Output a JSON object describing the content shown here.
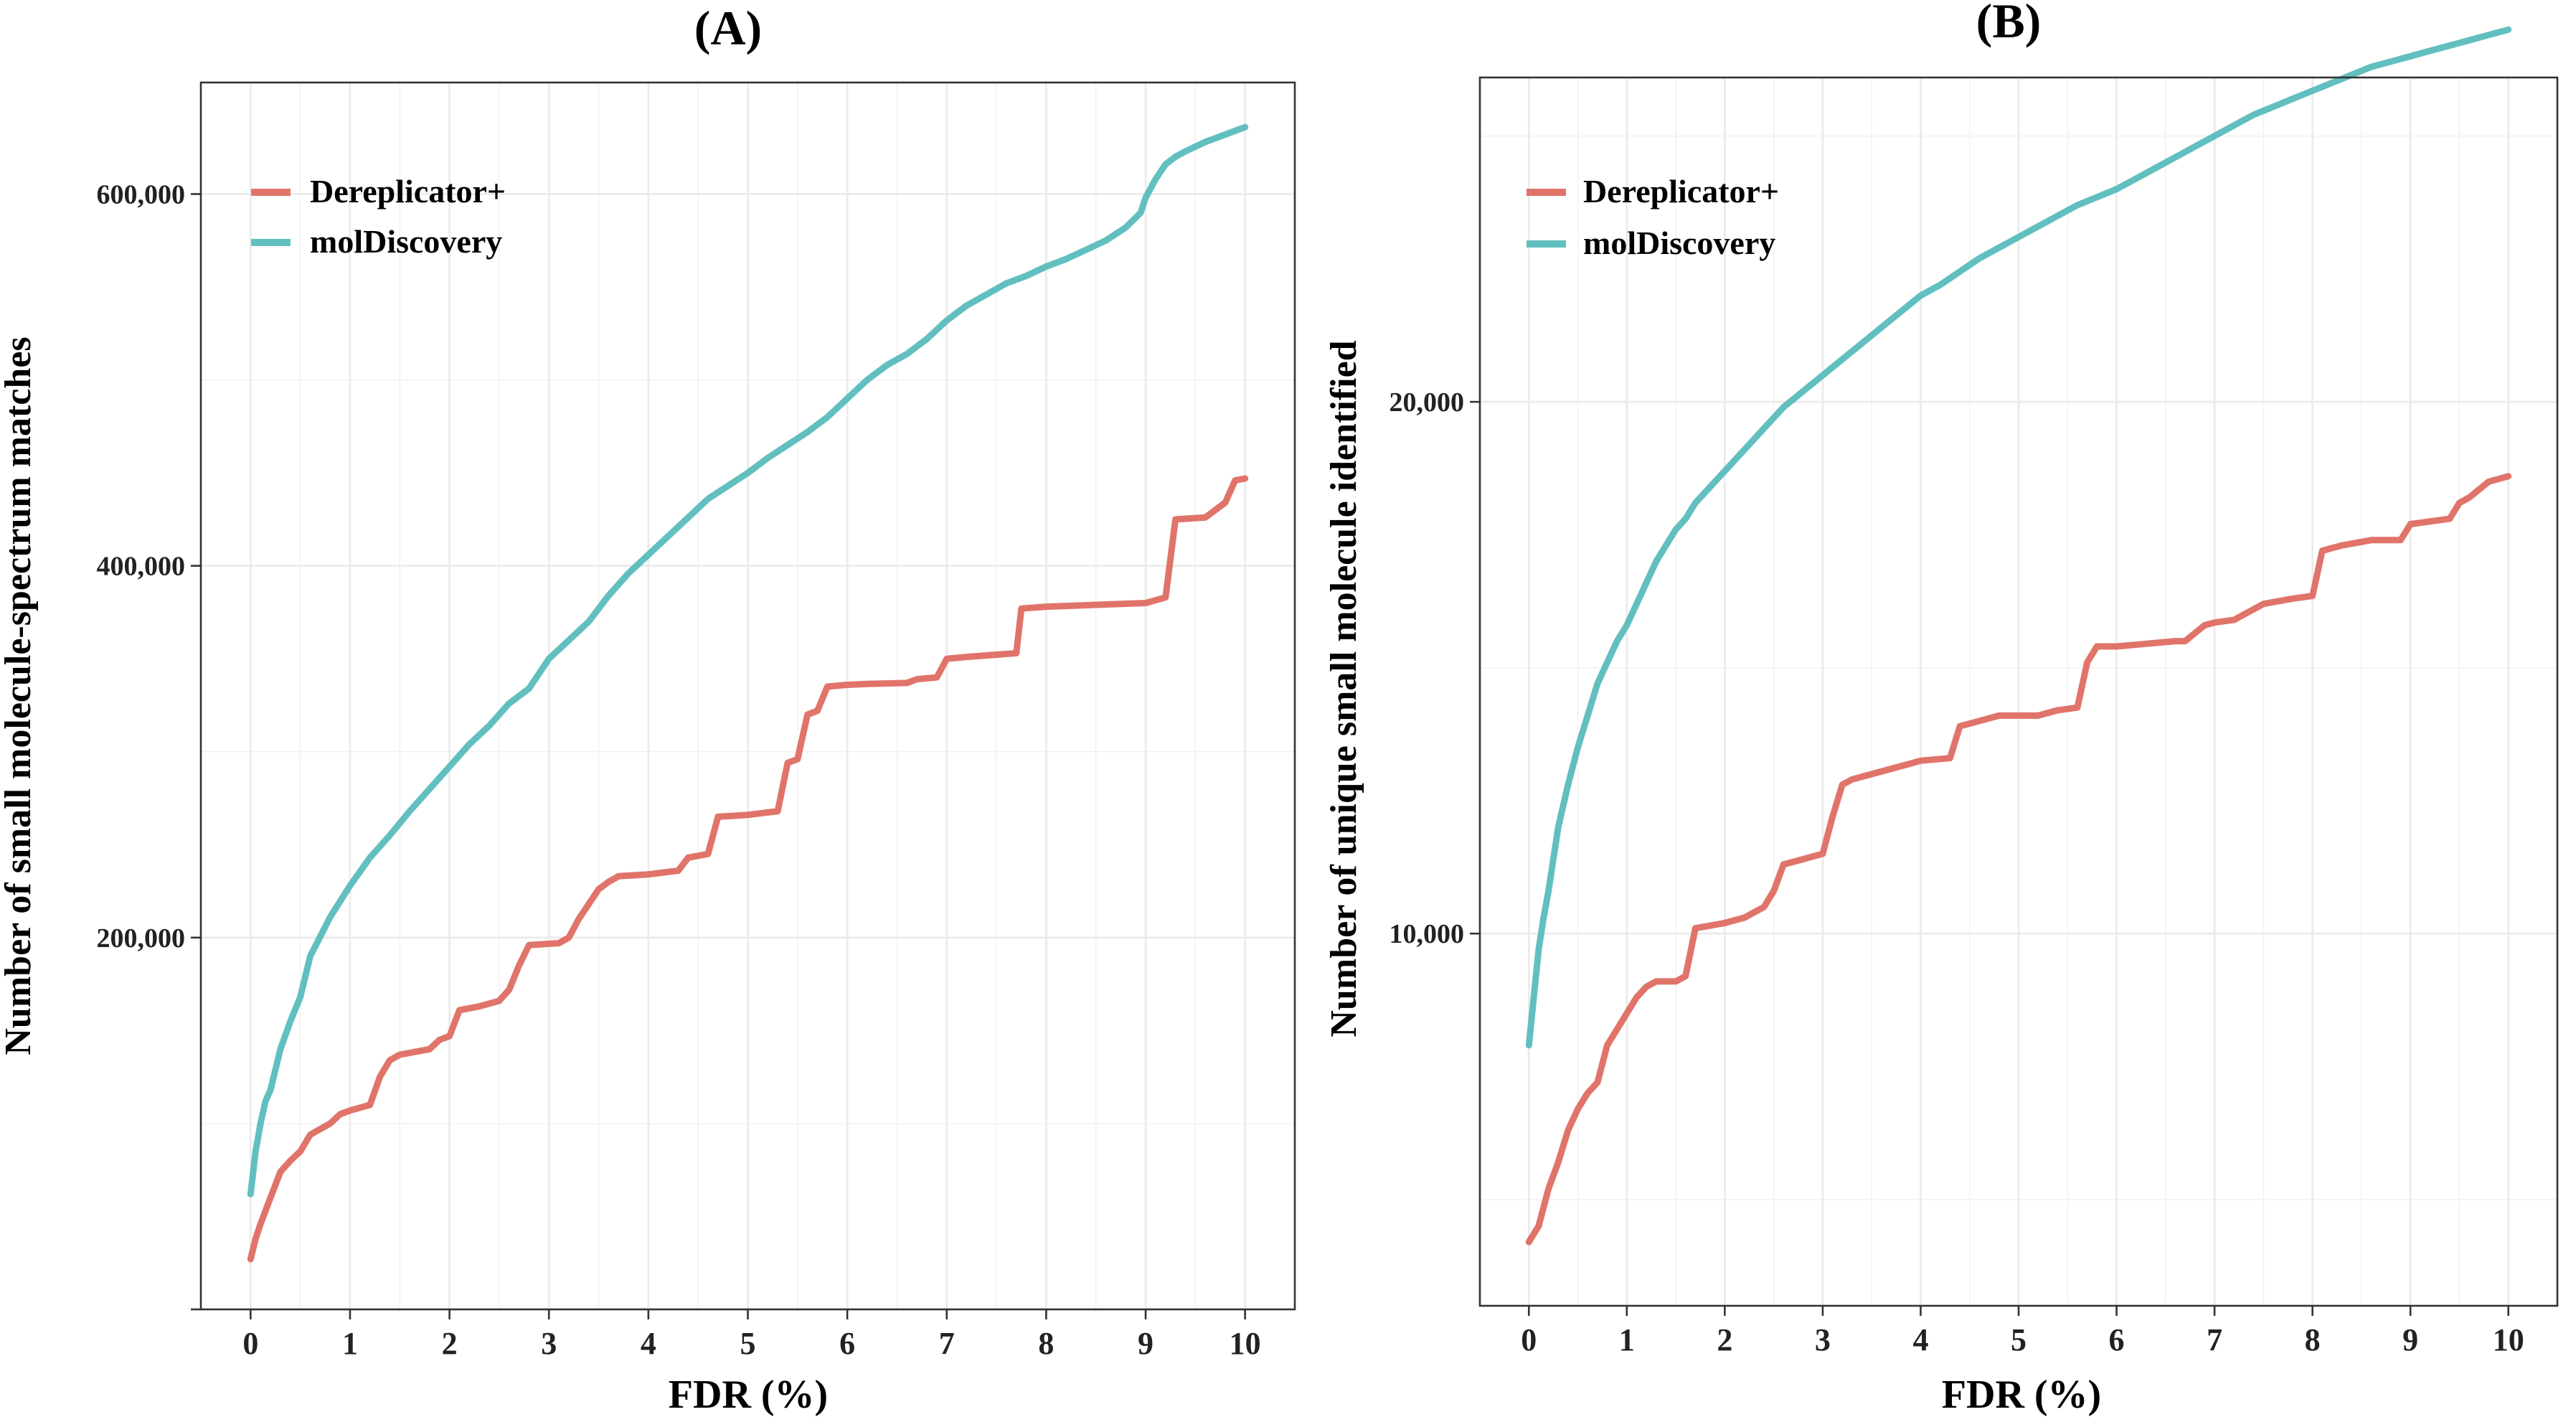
{
  "colors": {
    "dereplicator": "#e0746a",
    "moldiscovery": "#62bfbf"
  },
  "chart_data": [
    {
      "type": "line",
      "title": "(A)",
      "xlabel": "FDR (%)",
      "ylabel": "Number of small molecule-spectrum matches",
      "xlim": [
        -0.5,
        10.5
      ],
      "ylim": [
        0,
        660000
      ],
      "x_ticks": [
        0,
        1,
        2,
        3,
        4,
        5,
        6,
        7,
        8,
        9,
        10
      ],
      "x_tick_labels": [
        "0",
        "1",
        "2",
        "3",
        "4",
        "5",
        "6",
        "7",
        "8",
        "9",
        "10"
      ],
      "y_ticks": [
        0,
        200000,
        400000,
        600000
      ],
      "y_tick_labels": [
        "",
        "200,000",
        "400,000",
        "600,000"
      ],
      "grid": true,
      "legend_position": "top-left",
      "series": [
        {
          "name": "Dereplicator+",
          "x": [
            0,
            0.05,
            0.1,
            0.2,
            0.3,
            0.4,
            0.5,
            0.6,
            0.7,
            0.8,
            0.9,
            1.0,
            1.2,
            1.3,
            1.4,
            1.5,
            1.8,
            1.9,
            2.0,
            2.1,
            2.3,
            2.5,
            2.6,
            2.7,
            2.8,
            3.1,
            3.2,
            3.3,
            3.5,
            3.6,
            3.7,
            4.0,
            4.3,
            4.4,
            4.6,
            4.7,
            5.0,
            5.3,
            5.4,
            5.5,
            5.6,
            5.7,
            5.8,
            6.0,
            6.2,
            6.6,
            6.7,
            6.9,
            7.0,
            7.2,
            7.7,
            7.75,
            8.0,
            8.5,
            9.0,
            9.2,
            9.3,
            9.6,
            9.8,
            9.9,
            10.0
          ],
          "y": [
            27000,
            38000,
            46000,
            60000,
            74000,
            80000,
            85000,
            94000,
            97000,
            100000,
            105000,
            107000,
            110000,
            125000,
            134000,
            137000,
            140000,
            145000,
            147000,
            161000,
            163000,
            166000,
            172000,
            185000,
            196000,
            197000,
            200000,
            210000,
            226000,
            230000,
            233000,
            234000,
            236000,
            243000,
            245000,
            265000,
            266000,
            268000,
            294000,
            296000,
            320000,
            322000,
            335000,
            336000,
            336500,
            337000,
            339000,
            340000,
            350000,
            351000,
            353000,
            377000,
            378000,
            379000,
            380000,
            383000,
            425000,
            426000,
            434000,
            446000,
            447000
          ]
        },
        {
          "name": "molDiscovery",
          "x": [
            0,
            0.05,
            0.1,
            0.15,
            0.2,
            0.3,
            0.4,
            0.5,
            0.6,
            0.8,
            1.0,
            1.2,
            1.4,
            1.6,
            1.8,
            2.0,
            2.2,
            2.4,
            2.6,
            2.8,
            3.0,
            3.2,
            3.4,
            3.6,
            3.8,
            4.0,
            4.2,
            4.4,
            4.6,
            4.8,
            5.0,
            5.2,
            5.4,
            5.6,
            5.8,
            6.0,
            6.2,
            6.4,
            6.6,
            6.8,
            7.0,
            7.2,
            7.4,
            7.6,
            7.8,
            8.0,
            8.2,
            8.4,
            8.6,
            8.8,
            8.95,
            9.0,
            9.1,
            9.2,
            9.3,
            9.4,
            9.6,
            9.8,
            10.0
          ],
          "y": [
            62000,
            85000,
            100000,
            112000,
            118000,
            140000,
            155000,
            168000,
            190000,
            211000,
            228000,
            243000,
            255000,
            268000,
            280000,
            292000,
            304000,
            314000,
            326000,
            334000,
            350000,
            360000,
            370000,
            384000,
            396000,
            406000,
            416000,
            426000,
            436000,
            443000,
            450000,
            458000,
            465000,
            472000,
            480000,
            490000,
            500000,
            508000,
            514000,
            522000,
            532000,
            540000,
            546000,
            552000,
            556000,
            561000,
            565000,
            570000,
            575000,
            582000,
            590000,
            598000,
            608000,
            616000,
            620000,
            623000,
            628000,
            632000,
            636000
          ]
        }
      ]
    },
    {
      "type": "line",
      "title": "(B)",
      "xlabel": "FDR (%)",
      "ylabel": "Number of unique small molecule identified",
      "xlim": [
        -0.5,
        10.5
      ],
      "ylim": [
        3000,
        26100
      ],
      "x_ticks": [
        0,
        1,
        2,
        3,
        4,
        5,
        6,
        7,
        8,
        9,
        10
      ],
      "x_tick_labels": [
        "0",
        "1",
        "2",
        "3",
        "4",
        "5",
        "6",
        "7",
        "8",
        "9",
        "10"
      ],
      "y_ticks": [
        10000,
        20000
      ],
      "y_tick_labels": [
        "10,000",
        "20,000"
      ],
      "grid": true,
      "legend_position": "top-left",
      "series": [
        {
          "name": "Dereplicator+",
          "x": [
            0,
            0.1,
            0.2,
            0.3,
            0.4,
            0.5,
            0.6,
            0.7,
            0.8,
            0.9,
            1.0,
            1.1,
            1.2,
            1.3,
            1.5,
            1.6,
            1.7,
            2.0,
            2.2,
            2.4,
            2.5,
            2.6,
            2.8,
            3.0,
            3.1,
            3.2,
            3.3,
            3.5,
            3.7,
            3.9,
            4.0,
            4.3,
            4.4,
            4.6,
            4.8,
            5.0,
            5.2,
            5.4,
            5.6,
            5.7,
            5.8,
            6.0,
            6.3,
            6.6,
            6.7,
            6.9,
            7.0,
            7.2,
            7.5,
            7.8,
            8.0,
            8.1,
            8.3,
            8.6,
            8.9,
            9.0,
            9.4,
            9.5,
            9.6,
            9.8,
            10.0
          ],
          "y": [
            4200,
            4500,
            5200,
            5700,
            6300,
            6700,
            7000,
            7200,
            7900,
            8200,
            8500,
            8800,
            9000,
            9100,
            9100,
            9200,
            10100,
            10200,
            10300,
            10500,
            10800,
            11300,
            11400,
            11500,
            12200,
            12800,
            12900,
            13000,
            13100,
            13200,
            13250,
            13300,
            13900,
            14000,
            14100,
            14100,
            14100,
            14200,
            14250,
            15100,
            15400,
            15400,
            15450,
            15500,
            15500,
            15800,
            15850,
            15900,
            16200,
            16300,
            16350,
            17200,
            17300,
            17400,
            17400,
            17700,
            17800,
            18100,
            18200,
            18500,
            18600
          ]
        },
        {
          "name": "molDiscovery",
          "x": [
            0,
            0.05,
            0.1,
            0.15,
            0.2,
            0.25,
            0.3,
            0.4,
            0.5,
            0.6,
            0.7,
            0.8,
            0.9,
            1.0,
            1.1,
            1.2,
            1.3,
            1.4,
            1.5,
            1.6,
            1.7,
            1.8,
            2.0,
            2.2,
            2.4,
            2.6,
            2.8,
            3.0,
            3.2,
            3.4,
            3.6,
            3.8,
            4.0,
            4.2,
            4.4,
            4.6,
            4.8,
            5.0,
            5.2,
            5.4,
            5.6,
            5.8,
            6.0,
            6.2,
            6.4,
            6.6,
            6.8,
            7.0,
            7.2,
            7.4,
            7.6,
            7.8,
            8.0,
            8.2,
            8.4,
            8.6,
            8.8,
            9.0,
            9.2,
            9.4,
            9.6,
            9.8,
            10.0
          ],
          "y": [
            7900,
            8800,
            9700,
            10300,
            10800,
            11400,
            12000,
            12800,
            13500,
            14100,
            14700,
            15100,
            15500,
            15800,
            16200,
            16600,
            17000,
            17300,
            17600,
            17800,
            18100,
            18300,
            18700,
            19100,
            19500,
            19900,
            20200,
            20500,
            20800,
            21100,
            21400,
            21700,
            22000,
            22200,
            22450,
            22700,
            22900,
            23100,
            23300,
            23500,
            23700,
            23850,
            24000,
            24200,
            24400,
            24600,
            24800,
            25000,
            25200,
            25400,
            25550,
            25700,
            25850,
            26000,
            26150,
            26300,
            26400,
            26500,
            26600,
            26700,
            26800,
            26900,
            27000
          ]
        }
      ]
    }
  ]
}
